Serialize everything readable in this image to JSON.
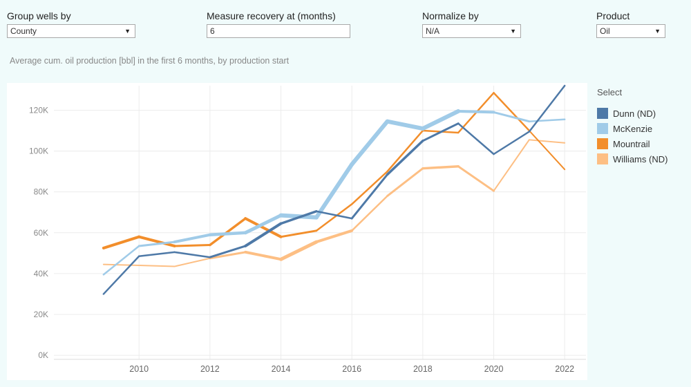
{
  "controls": {
    "group_by": {
      "label": "Group wells by",
      "value": "County"
    },
    "recovery": {
      "label": "Measure recovery at (months)",
      "value": "6"
    },
    "normalize": {
      "label": "Normalize by",
      "value": "N/A"
    },
    "product": {
      "label": "Product",
      "value": "Oil"
    }
  },
  "subtitle": "Average cum. oil production [bbl] in the first 6 months, by production start",
  "chart_data": {
    "type": "line",
    "title": "",
    "xlabel": "",
    "ylabel": "",
    "x": [
      2009,
      2010,
      2011,
      2012,
      2013,
      2014,
      2015,
      2016,
      2017,
      2018,
      2019,
      2020,
      2021,
      2022
    ],
    "x_ticks": [
      2010,
      2012,
      2014,
      2016,
      2018,
      2020,
      2022
    ],
    "x_tick_labels": [
      "2010",
      "2012",
      "2014",
      "2016",
      "2018",
      "2020",
      "2022"
    ],
    "xlim": [
      2007.6,
      2022.6
    ],
    "ylim": [
      -2000,
      132000
    ],
    "y_ticks": [
      0,
      20000,
      40000,
      60000,
      80000,
      100000,
      120000
    ],
    "y_tick_labels": [
      "0K",
      "20K",
      "40K",
      "60K",
      "80K",
      "100K",
      "120K"
    ],
    "grid": true,
    "legend_position": "right",
    "series": [
      {
        "name": "Williams (ND)",
        "color": "#fdbf84",
        "values": [
          44500,
          44000,
          43500,
          47500,
          50500,
          47000,
          55500,
          61000,
          78000,
          91500,
          92500,
          80500,
          105500,
          104000
        ]
      },
      {
        "name": "Mountrail",
        "color": "#f28e2b",
        "values": [
          52500,
          58000,
          53500,
          54000,
          67000,
          58000,
          61000,
          74000,
          90000,
          110000,
          109000,
          128500,
          110000,
          91000
        ]
      },
      {
        "name": "McKenzie",
        "color": "#a0cbe8",
        "values": [
          39500,
          53500,
          55500,
          59000,
          60000,
          68500,
          67500,
          93500,
          114500,
          111000,
          119500,
          119000,
          114500,
          115500
        ]
      },
      {
        "name": "Dunn (ND)",
        "color": "#4e79a7",
        "values": [
          30000,
          48500,
          50500,
          48000,
          53500,
          64500,
          70500,
          67000,
          88500,
          105000,
          113500,
          98500,
          109500,
          132000
        ]
      }
    ]
  },
  "legend": {
    "title": "Select",
    "items": [
      {
        "label": "Dunn (ND)",
        "color": "#4e79a7"
      },
      {
        "label": "McKenzie",
        "color": "#a0cbe8"
      },
      {
        "label": "Mountrail",
        "color": "#f28e2b"
      },
      {
        "label": "Williams (ND)",
        "color": "#fdbf84"
      }
    ]
  }
}
